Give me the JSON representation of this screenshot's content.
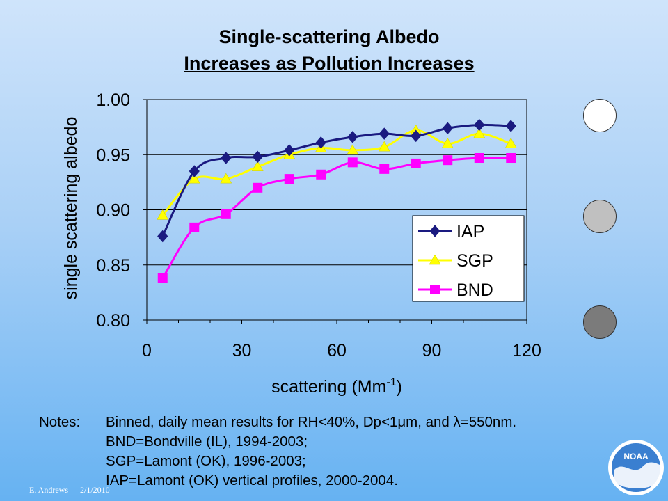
{
  "slide": {
    "title_line1": "Single-scattering Albedo",
    "title_line2": "Increases as Pollution Increases",
    "notes_label": "Notes:",
    "notes_lines": [
      "Binned, daily mean results for RH<40%, Dp<1μm, and λ=550nm.",
      "BND=Bondville (IL), 1994-2003;",
      "SGP=Lamont (OK), 1996-2003;",
      "IAP=Lamont (OK) vertical profiles, 2000-2004."
    ],
    "footer_author": "E. Andrews",
    "footer_date": "2/1/2010",
    "logo_text": "NOAA",
    "circle_colors": [
      "#ffffff",
      "#c0c0c0",
      "#7b7b7b"
    ]
  },
  "chart_data": {
    "type": "line",
    "title": "",
    "xlabel": "scattering (Mm",
    "xlabel_superscript": "-1",
    "xlabel_close": ")",
    "ylabel": "single scattering albedo",
    "xlim": [
      0,
      120
    ],
    "ylim": [
      0.8,
      1.0
    ],
    "xticks": [
      "0",
      "30",
      "60",
      "90",
      "120"
    ],
    "yticks": [
      "0.80",
      "0.85",
      "0.90",
      "0.95",
      "1.00"
    ],
    "grid": "horizontal",
    "legend_position": "bottom-right",
    "series": [
      {
        "name": "IAP",
        "color": "#1a1a80",
        "marker": "diamond",
        "x": [
          5,
          15,
          25,
          35,
          45,
          55,
          65,
          75,
          85,
          95,
          105,
          115
        ],
        "values": [
          0.876,
          0.935,
          0.947,
          0.948,
          0.954,
          0.961,
          0.966,
          0.969,
          0.967,
          0.974,
          0.977,
          0.976
        ]
      },
      {
        "name": "SGP",
        "color": "#ffff00",
        "marker": "triangle",
        "x": [
          5,
          15,
          25,
          35,
          45,
          55,
          65,
          75,
          85,
          95,
          105,
          115
        ],
        "values": [
          0.895,
          0.928,
          0.928,
          0.939,
          0.95,
          0.956,
          0.954,
          0.957,
          0.972,
          0.96,
          0.969,
          0.96
        ]
      },
      {
        "name": "BND",
        "color": "#ff00ff",
        "marker": "square",
        "x": [
          5,
          15,
          25,
          35,
          45,
          55,
          65,
          75,
          85,
          95,
          105,
          115
        ],
        "values": [
          0.838,
          0.884,
          0.896,
          0.92,
          0.928,
          0.932,
          0.943,
          0.937,
          0.942,
          0.945,
          0.947,
          0.947
        ]
      }
    ]
  }
}
